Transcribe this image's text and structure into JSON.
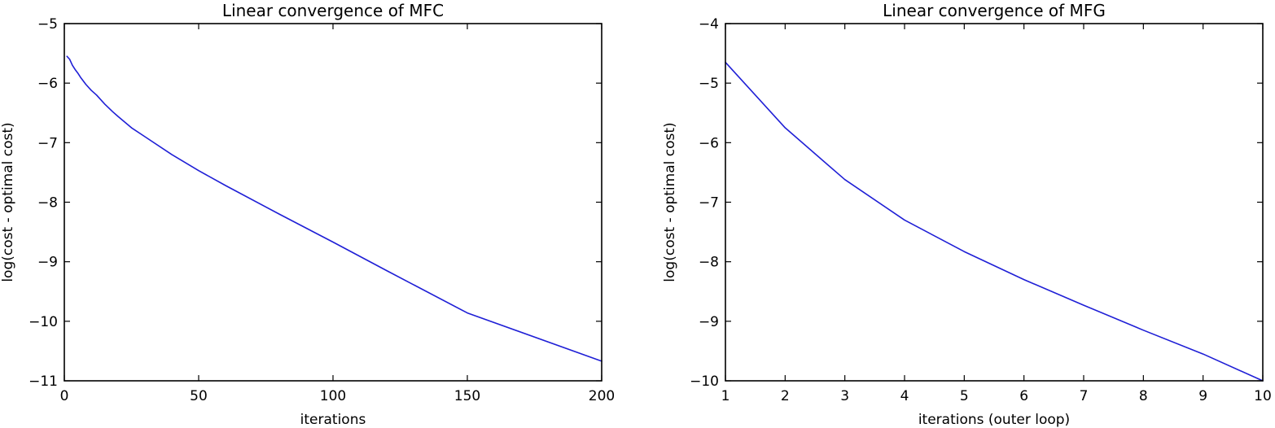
{
  "chart_data": [
    {
      "type": "line",
      "title": "Linear convergence of MFC",
      "xlabel": "iterations",
      "ylabel": "log(cost - optimal cost)",
      "xlim": [
        0,
        200
      ],
      "ylim": [
        -11,
        -5
      ],
      "xticks": [
        0,
        50,
        100,
        150,
        200
      ],
      "xtick_labels": [
        "0",
        "50",
        "100",
        "150",
        "200"
      ],
      "yticks": [
        -5,
        -6,
        -7,
        -8,
        -9,
        -10,
        -11
      ],
      "ytick_labels": [
        "−5",
        "−6",
        "−7",
        "−8",
        "−9",
        "−10",
        "−11"
      ],
      "grid": false,
      "series": [
        {
          "color": "#1f1fd6",
          "x": [
            1,
            2,
            3,
            4,
            5,
            6,
            8,
            10,
            12,
            15,
            18,
            20,
            25,
            30,
            40,
            50,
            60,
            80,
            100,
            120,
            150,
            200
          ],
          "y": [
            -5.55,
            -5.6,
            -5.7,
            -5.77,
            -5.83,
            -5.9,
            -6.02,
            -6.12,
            -6.2,
            -6.35,
            -6.48,
            -6.56,
            -6.75,
            -6.9,
            -7.2,
            -7.47,
            -7.72,
            -8.2,
            -8.67,
            -9.15,
            -9.86,
            -10.67
          ]
        }
      ]
    },
    {
      "type": "line",
      "title": "Linear convergence of MFG",
      "xlabel": "iterations (outer loop)",
      "ylabel": "log(cost - optimal cost)",
      "xlim": [
        1,
        10
      ],
      "ylim": [
        -10,
        -4
      ],
      "xticks": [
        1,
        2,
        3,
        4,
        5,
        6,
        7,
        8,
        9,
        10
      ],
      "xtick_labels": [
        "1",
        "2",
        "3",
        "4",
        "5",
        "6",
        "7",
        "8",
        "9",
        "10"
      ],
      "yticks": [
        -4,
        -5,
        -6,
        -7,
        -8,
        -9,
        -10
      ],
      "ytick_labels": [
        "−4",
        "−5",
        "−6",
        "−7",
        "−8",
        "−9",
        "−10"
      ],
      "grid": false,
      "series": [
        {
          "color": "#1f1fd6",
          "x": [
            1,
            2,
            3,
            4,
            5,
            6,
            7,
            8,
            9,
            10
          ],
          "y": [
            -4.65,
            -5.75,
            -6.62,
            -7.3,
            -7.83,
            -8.3,
            -8.73,
            -9.15,
            -9.55,
            -10.0
          ]
        }
      ]
    }
  ]
}
